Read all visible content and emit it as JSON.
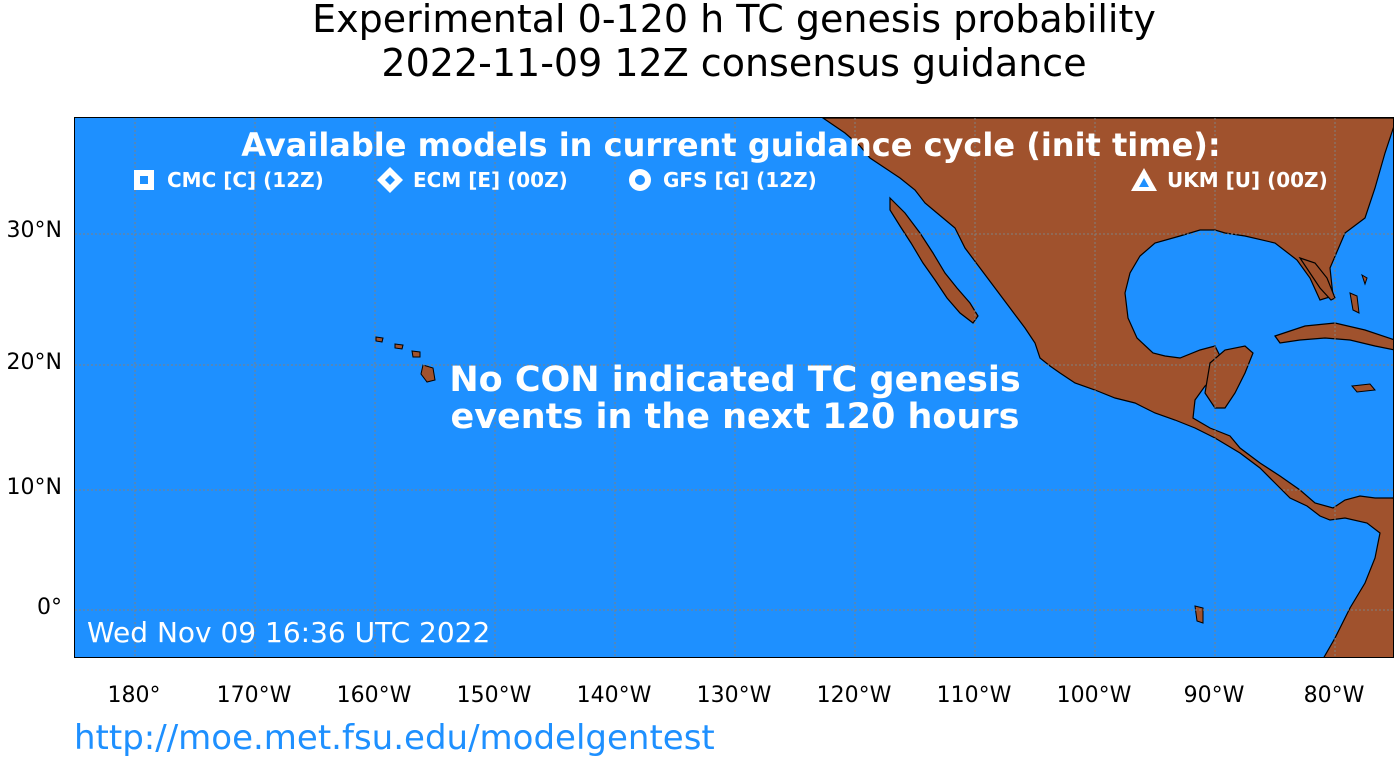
{
  "title": {
    "line1": "Experimental 0-120 h TC genesis probability",
    "line2": "2022-11-09 12Z consensus guidance"
  },
  "legend": {
    "title": "Available models in current guidance cycle (init time):",
    "items": [
      {
        "label": "CMC [C] (12Z)",
        "symbol": "square-icon"
      },
      {
        "label": "ECM [E] (00Z)",
        "symbol": "diamond-icon"
      },
      {
        "label": "GFS [G] (12Z)",
        "symbol": "circle-icon"
      },
      {
        "label": "UKM [U] (00Z)",
        "symbol": "triangle-icon"
      }
    ]
  },
  "message": {
    "line1": "No CON indicated TC genesis",
    "line2": "events in the next 120 hours"
  },
  "timestamp": "Wed Nov 09 16:36 UTC 2022",
  "lat_ticks": [
    "30°N",
    "20°N",
    "10°N",
    "0°"
  ],
  "lon_ticks": [
    "180°",
    "170°W",
    "160°W",
    "150°W",
    "140°W",
    "130°W",
    "120°W",
    "110°W",
    "100°W",
    "90°W",
    "80°W"
  ],
  "url": "http://moe.met.fsu.edu/modelgentest",
  "colors": {
    "ocean": "#1e90ff",
    "land": "#a0522d",
    "grid": "#808080",
    "url": "#1e90ff"
  }
}
